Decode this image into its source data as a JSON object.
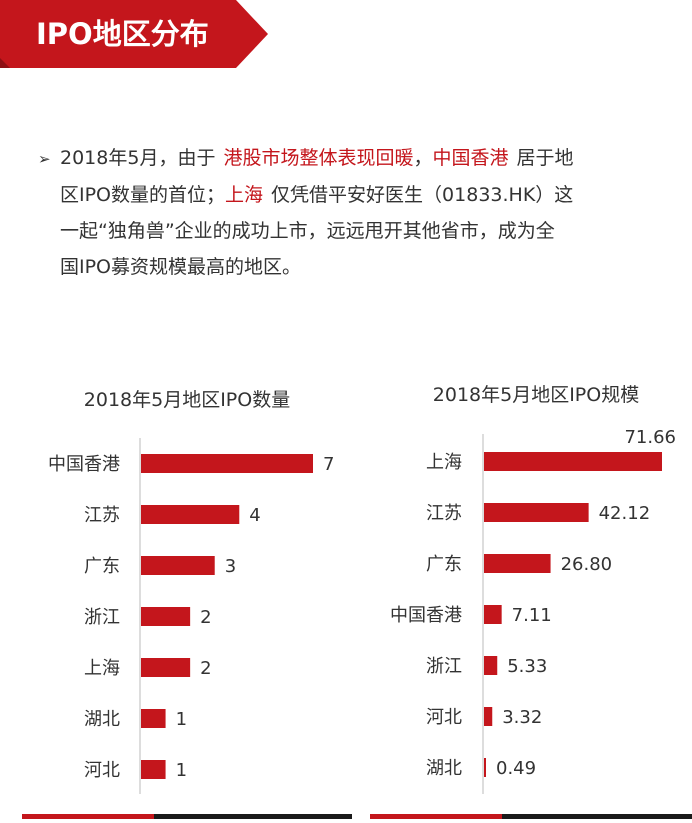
{
  "header": {
    "title": "IPO地区分布"
  },
  "summary": {
    "line1_a": "2018年5月，由于",
    "line1_hl1": "港股市场整体表现回暖",
    "line1_b": "，",
    "line1_hl2": "中国香港",
    "line1_c": "居于地",
    "line2_a": "区IPO数量的首位；",
    "line2_hl": "上海",
    "line2_b": "仅凭借平安好医生（01833.HK）这",
    "line3": "一起“独角兽”企业的成功上市，远远甩开其他省市，成为全",
    "line4": "国IPO募资规模最高的地区。"
  },
  "colors": {
    "accent": "#c4161c",
    "bar": "#c4161c",
    "dark": "#1a1a1a"
  },
  "icons": {
    "bullet": "arrow-right-icon"
  },
  "chart_data": [
    {
      "type": "bar",
      "orientation": "horizontal",
      "title": "2018年5月地区IPO数量",
      "categories": [
        "中国香港",
        "江苏",
        "广东",
        "浙江",
        "上海",
        "湖北",
        "河北"
      ],
      "values": [
        7,
        4,
        3,
        2,
        2,
        1,
        1
      ],
      "value_labels": [
        "7",
        "4",
        "3",
        "2",
        "2",
        "1",
        "1"
      ],
      "xlim": [
        0,
        7
      ]
    },
    {
      "type": "bar",
      "orientation": "horizontal",
      "title": "2018年5月地区IPO规模",
      "categories": [
        "上海",
        "江苏",
        "广东",
        "中国香港",
        "浙江",
        "河北",
        "湖北"
      ],
      "values": [
        71.66,
        42.12,
        26.8,
        7.11,
        5.33,
        3.32,
        0.49
      ],
      "value_labels": [
        "71.66",
        "42.12",
        "26.80",
        "7.11",
        "5.33",
        "3.32",
        "0.49"
      ],
      "xlim": [
        0,
        71.66
      ]
    }
  ]
}
